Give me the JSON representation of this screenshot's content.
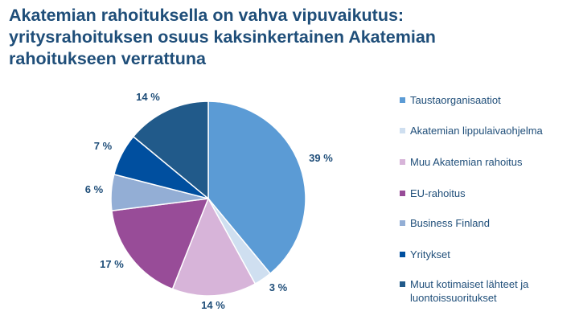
{
  "title": {
    "line1": "Akatemian rahoituksella on vahva vipuvaikutus:",
    "line2": "yritysrahoituksen osuus kaksinkertainen Akatemian",
    "line3": "rahoitukseen verrattuna"
  },
  "chart_data": {
    "type": "pie",
    "legend_placement": "right",
    "slices": [
      {
        "name": "Taustaorganisaatiot",
        "value": 39,
        "label": "39 %",
        "color": "#5b9bd5"
      },
      {
        "name": "Akatemian lippulaivaohjelma",
        "value": 3,
        "label": "3 %",
        "color": "#cfdff0"
      },
      {
        "name": "Muu Akatemian rahoitus",
        "value": 14,
        "label": "14 %",
        "color": "#d7b4d9"
      },
      {
        "name": "EU-rahoitus",
        "value": 17,
        "label": "17 %",
        "color": "#984c98"
      },
      {
        "name": "Business Finland",
        "value": 6,
        "label": "6 %",
        "color": "#93aed5"
      },
      {
        "name": "Yritykset",
        "value": 7,
        "label": "7 %",
        "color": "#004f9f"
      },
      {
        "name": "Muut kotimaiset lähteet ja luontoissuoritukset",
        "value": 14,
        "label": "14 %",
        "color": "#215a8a"
      }
    ]
  }
}
